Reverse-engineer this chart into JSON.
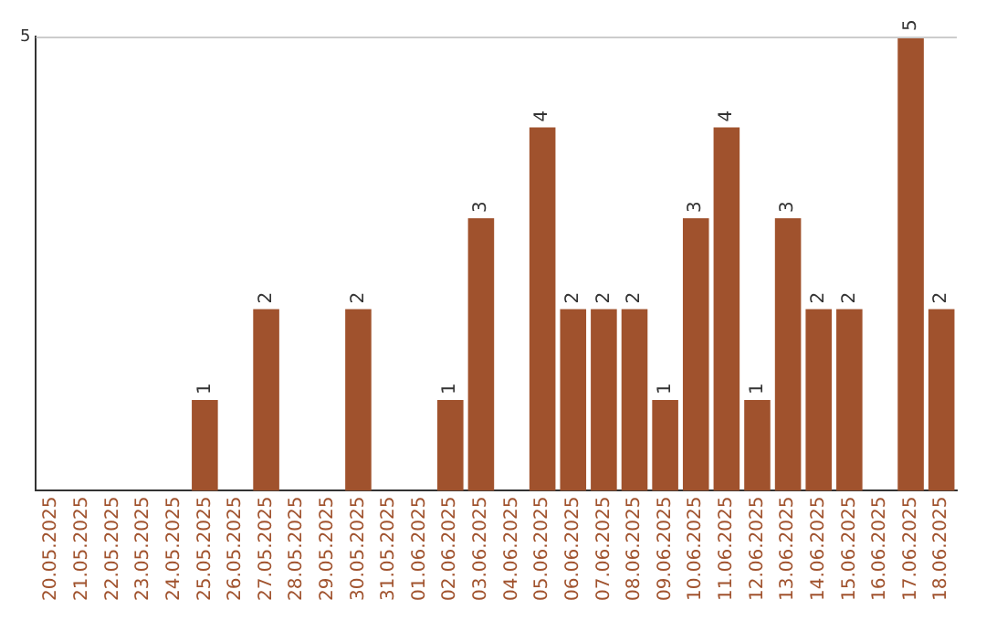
{
  "chart_data": {
    "type": "bar",
    "categories": [
      "20.05.2025",
      "21.05.2025",
      "22.05.2025",
      "23.05.2025",
      "24.05.2025",
      "25.05.2025",
      "26.05.2025",
      "27.05.2025",
      "28.05.2025",
      "29.05.2025",
      "30.05.2025",
      "31.05.2025",
      "01.06.2025",
      "02.06.2025",
      "03.06.2025",
      "04.06.2025",
      "05.06.2025",
      "06.06.2025",
      "07.06.2025",
      "08.06.2025",
      "09.06.2025",
      "10.06.2025",
      "11.06.2025",
      "12.06.2025",
      "13.06.2025",
      "14.06.2025",
      "15.06.2025",
      "16.06.2025",
      "17.06.2025",
      "18.06.2025"
    ],
    "values": [
      0,
      0,
      0,
      0,
      0,
      1,
      0,
      2,
      0,
      0,
      2,
      0,
      0,
      1,
      3,
      0,
      4,
      2,
      2,
      2,
      1,
      3,
      4,
      1,
      3,
      2,
      2,
      0,
      5,
      2
    ],
    "value_labels": [
      null,
      null,
      null,
      null,
      null,
      "1",
      null,
      "2",
      null,
      null,
      "2",
      null,
      null,
      "1",
      "3",
      null,
      "4",
      "2",
      "2",
      "2",
      "1",
      "3",
      "4",
      "1",
      "3",
      "2",
      "2",
      null,
      "5",
      "2"
    ],
    "color": "#a0522d",
    "ylim": [
      0,
      5
    ],
    "yticks": [
      5
    ],
    "grid": false,
    "legend": false
  }
}
